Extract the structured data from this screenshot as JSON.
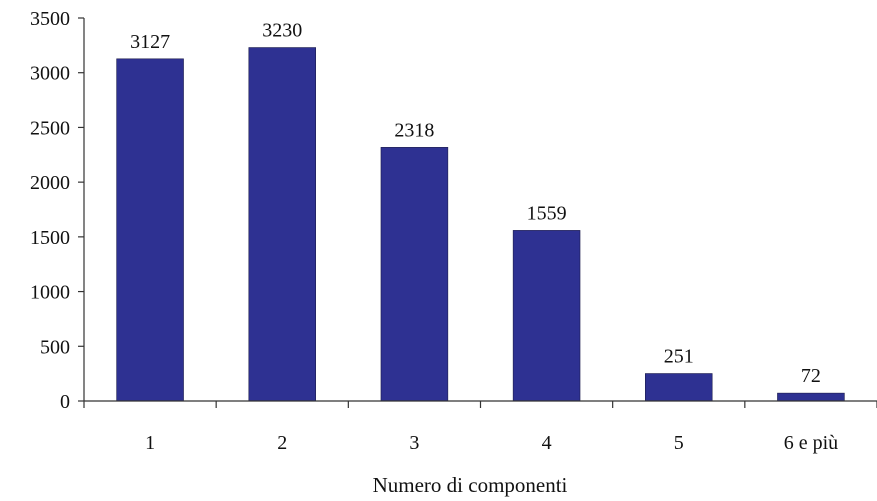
{
  "chart_data": {
    "type": "bar",
    "title": "",
    "xlabel": "Numero di componenti",
    "ylabel": "",
    "categories": [
      "1",
      "2",
      "3",
      "4",
      "5",
      "6 e più"
    ],
    "values": [
      3127,
      3230,
      2318,
      1559,
      251,
      72
    ],
    "data_labels": [
      "3127",
      "3230",
      "2318",
      "1559",
      "251",
      "72"
    ],
    "ylim": [
      0,
      3500
    ],
    "yticks": [
      0,
      500,
      1000,
      1500,
      2000,
      2500,
      3000,
      3500
    ],
    "ytick_labels": [
      "0",
      "500",
      "1000",
      "1500",
      "2000",
      "2500",
      "3000",
      "3500"
    ],
    "grid": false,
    "legend": "none",
    "bar_color": "#2e3192"
  }
}
